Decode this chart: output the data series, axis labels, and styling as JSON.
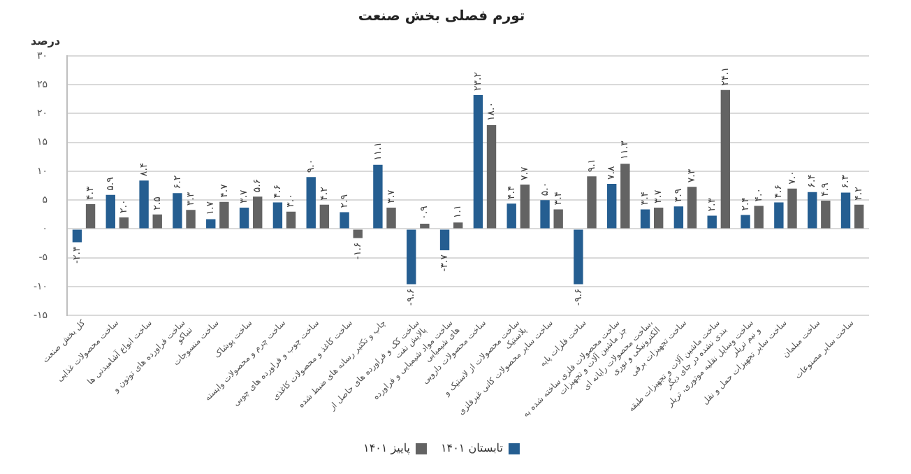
{
  "chart_data": {
    "type": "bar",
    "title": "تورم فصلی بخش صنعت",
    "ylabel": "درصد",
    "categories": [
      "کل بخش صنعت",
      "ساخت محصولات غذایی",
      "ساخت انواع آشامیدنی ها",
      "ساخت فراورده های توتون و تنباکو",
      "ساخت منسوجات",
      "ساخت پوشاک",
      "ساخت چرم و محصولات وابسته",
      "ساخت چوب و فراورده های چوبی",
      "ساخت کاغذ و محصولات کاغذی",
      "چاپ و تکثیر رسانه های ضبط شده",
      "ساخت کک و فراورده های حاصل از پالایش نفت",
      "ساخت مواد شیمیایی و فراورده های شیمیایی",
      "ساخت محصولات دارویی",
      "ساخت محصولات از لاستیک و پلاستیک",
      "ساخت سایر محصولات کانی غیرفلزی",
      "ساخت فلزات پایه",
      "ساخت محصولات فلزی ساخته شده به جز ماشین آلات و تجهیزات",
      "ساخت محصولات رایانه ای، الکترونیکی و نوری",
      "ساخت تجهیزات برقی",
      "ساخت ماشین آلات و تجهیزات طبقه بندی نشده در جای دیگر",
      "ساخت وسایل نقلیه موتوری، تریلر و نیم تریلر",
      "ساخت سایر تجهیزات حمل و نقل",
      "ساخت مبلمان",
      "ساخت سایر مصنوعات"
    ],
    "series": [
      {
        "name": "تابستان ۱۴۰۱",
        "color": "#255e91",
        "values": [
          -2.3,
          5.9,
          8.4,
          6.2,
          1.7,
          3.7,
          4.6,
          9.0,
          2.9,
          11.1,
          -9.6,
          -3.7,
          23.2,
          4.4,
          5.0,
          -9.6,
          7.8,
          3.4,
          3.9,
          2.3,
          2.4,
          4.6,
          6.4,
          6.3
        ],
        "value_labels": [
          "-۲.۳",
          "۵.۹",
          "۸.۴",
          "۶.۲",
          "۱.۷",
          "۳.۷",
          "۴.۶",
          "۹.۰",
          "۲.۹",
          "۱۱.۱",
          "-۹.۶",
          "-۳.۷",
          "۲۳.۲",
          "۴.۴",
          "۵.۰",
          "-۹.۶",
          "۷.۸",
          "۳.۴",
          "۳.۹",
          "۲.۳",
          "۲.۴",
          "۴.۶",
          "۶.۴",
          "۶.۳"
        ]
      },
      {
        "name": "پاییز ۱۴۰۱",
        "color": "#636363",
        "values": [
          4.3,
          2.0,
          2.5,
          3.3,
          4.7,
          5.6,
          3.0,
          4.2,
          -1.6,
          3.7,
          0.9,
          1.1,
          18.0,
          7.7,
          3.4,
          9.1,
          11.3,
          3.7,
          7.3,
          24.1,
          4.0,
          7.0,
          4.9,
          4.2
        ],
        "value_labels": [
          "۴.۳",
          "۲.۰",
          "۲.۵",
          "۳.۳",
          "۴.۷",
          "۵.۶",
          "۳.۰",
          "۴.۲",
          "-۱.۶",
          "۳.۷",
          "۰.۹",
          "۱.۱",
          "۱۸.۰",
          "۷.۷",
          "۳.۴",
          "۹.۱",
          "۱۱.۳",
          "۳.۷",
          "۷.۳",
          "۲۴.۱",
          "۴.۰",
          "۷.۰",
          "۴.۹",
          "۴.۲"
        ]
      }
    ],
    "ylim": [
      -15,
      30
    ],
    "yticks": [
      {
        "value": -15,
        "label": "-۱۵"
      },
      {
        "value": -10,
        "label": "-۱۰"
      },
      {
        "value": -5,
        "label": "-۵"
      },
      {
        "value": 0,
        "label": "۰"
      },
      {
        "value": 5,
        "label": "۵"
      },
      {
        "value": 10,
        "label": "۱۰"
      },
      {
        "value": 15,
        "label": "۱۵"
      },
      {
        "value": 20,
        "label": "۲۰"
      },
      {
        "value": 25,
        "label": "۲۵"
      },
      {
        "value": 30,
        "label": "۳۰"
      }
    ],
    "grid": "y",
    "legend": "bottom"
  }
}
